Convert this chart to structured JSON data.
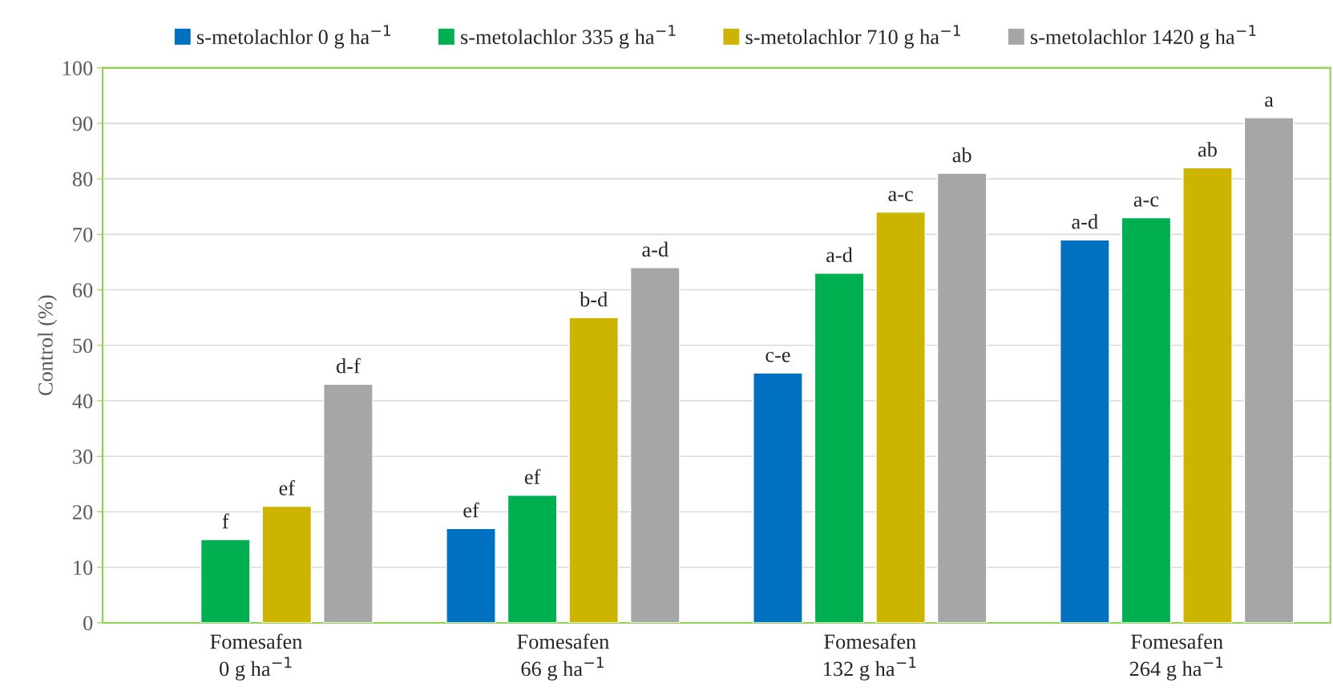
{
  "chart_data": {
    "type": "bar",
    "ylabel": "Control (%)",
    "categories": [
      "Fomesafen\n0 g ha$^{−1}$",
      "Fomesafen\n66 g ha$^{−1}$",
      "Fomesafen\n132 g ha$^{−1}$",
      "Fomesafen\n264 g ha$^{−1}$"
    ],
    "series": [
      {
        "name": "s-metolachlor 0 g ha$^{−1}$",
        "color": "#0070c0",
        "values": [
          null,
          17,
          45,
          69
        ],
        "value_labels": [
          null,
          "ef",
          "c-e",
          "a-d"
        ]
      },
      {
        "name": "s-metolachlor 335 g ha$^{−1}$",
        "color": "#00b050",
        "values": [
          15,
          23,
          63,
          73
        ],
        "value_labels": [
          "f",
          "ef",
          "a-d",
          "a-c"
        ]
      },
      {
        "name": "s-metolachlor 710 g ha$^{−1}$",
        "color": "#ccb400",
        "values": [
          21,
          55,
          74,
          82
        ],
        "value_labels": [
          "ef",
          "b-d",
          "a-c",
          "ab"
        ]
      },
      {
        "name": "s-metolachlor 1420 g ha$^{−1}$",
        "color": "#a6a6a6",
        "values": [
          43,
          64,
          81,
          91
        ],
        "value_labels": [
          "d-f",
          "a-d",
          "ab",
          "a"
        ]
      }
    ],
    "ylim": [
      0,
      100
    ],
    "yticks": [
      0,
      10,
      20,
      30,
      40,
      50,
      60,
      70,
      80,
      90,
      100
    ],
    "grid": "y",
    "legend": "top"
  }
}
